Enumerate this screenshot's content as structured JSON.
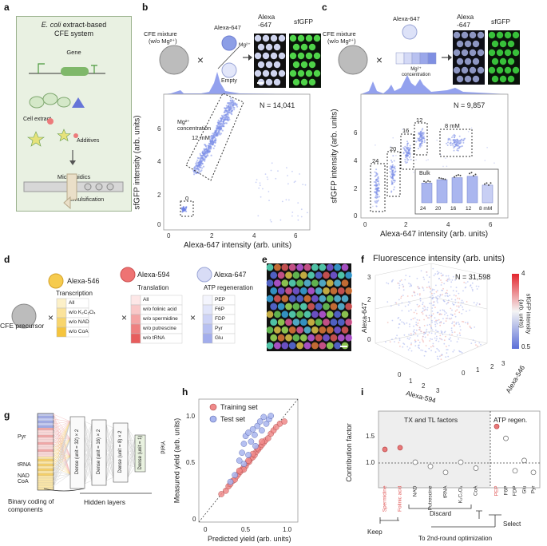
{
  "panel_labels": [
    "a",
    "b",
    "c",
    "d",
    "e",
    "f",
    "g",
    "h",
    "i"
  ],
  "panel_a": {
    "title_italic": "E. coli",
    "title_rest": " extract-based",
    "subtitle": "CFE system",
    "gene": "Gene",
    "gene_box": "sfGFP",
    "cell_extract": "Cell extract",
    "additives": "Additives",
    "microfluidics": "Microfluidics",
    "emulsification": "Emulsification"
  },
  "panel_b": {
    "mixture": "CFE mixture",
    "mixture_sub": "(w/o Mg²⁺)",
    "dye": "Alexa-647",
    "mg": "Mg²⁺",
    "empty": "Empty",
    "img1": "Alexa\n-647",
    "img2": "sfGFP",
    "n_text": "N = 14,041",
    "mg_label": "Mg²⁺\nconcentration",
    "label_12": "12 mM",
    "label_0": "0",
    "xlabel": "Alexa-647 intensity (arb. units)",
    "ylabel": "sfGFP intensity (arb. units)"
  },
  "panel_c": {
    "mixture": "CFE mixture",
    "mixture_sub": "(w/o Mg²⁺)",
    "dye": "Alexa-647",
    "mg": "Mg²⁺\nconcentration",
    "img1": "Alexa\n-647",
    "img2": "sfGFP",
    "n_text": "N = 9,857",
    "xlabel": "Alexa-647 intensity (arb. units)",
    "ylabel": "sfGFP intensity (arb. units)",
    "cluster_labels": [
      "24",
      "20",
      "16",
      "12",
      "8 mM"
    ],
    "bulk_title": "Bulk",
    "bulk_x": [
      "24",
      "20",
      "16",
      "12",
      "8 mM"
    ]
  },
  "panel_d": {
    "precursor": "CFE precursor",
    "g1_dye": "Alexa-546",
    "g1_title": "Transcription",
    "g1_rows": [
      "All",
      "w/o K₂C₂O₄",
      "w/o NAD",
      "w/o CoA"
    ],
    "g2_dye": "Alexa-594",
    "g2_title": "Translation",
    "g2_rows": [
      "All",
      "w/o folinic acid",
      "w/o spermidine",
      "w/o putrescine",
      "w/o tRNA"
    ],
    "g3_dye": "Alexa-647",
    "g3_title": "ATP regeneration",
    "g3_rows": [
      "PEP",
      "F6P",
      "FDP",
      "Pyr",
      "Glu"
    ],
    "times": "×"
  },
  "panel_f": {
    "title": "Fluorescence intensity (arb. units)",
    "n_text": "N = 31,598",
    "axis1": "Alexa-647",
    "axis2": "Alexa-594",
    "axis3": "Alexa-546",
    "cbar_title": "sfGFP intensity\n(arb. units)",
    "cbar_max": "4",
    "cbar_min": "0.5"
  },
  "panel_g": {
    "row_labels": [
      "Pyr",
      "tRNA",
      "NAD",
      "CoA"
    ],
    "layers": [
      "Dense (unit = 32) × 2",
      "Dense (unit = 16) × 2",
      "Dense (unit = 8) × 2",
      "Dense (unit = 1)"
    ],
    "output": "Yield",
    "binary": "Binary coding of\ncomponents",
    "hidden": "Hidden layers"
  },
  "chart_data": [
    {
      "type": "scatter",
      "title": "",
      "xlabel": "Predicted yield (arb. units)",
      "ylabel": "Measured yield (arb. units)",
      "xlim": [
        0,
        1.1
      ],
      "ylim": [
        0,
        1.1
      ],
      "xticks": [
        "0",
        "0.5",
        "1.0"
      ],
      "yticks": [
        "0",
        "0.5",
        "1.0"
      ],
      "legend": [
        "Training set",
        "Test set"
      ],
      "series": [
        {
          "name": "Training set",
          "color": "#f08a8a",
          "points": [
            [
              0.25,
              0.25
            ],
            [
              0.3,
              0.28
            ],
            [
              0.33,
              0.32
            ],
            [
              0.35,
              0.34
            ],
            [
              0.38,
              0.37
            ],
            [
              0.4,
              0.38
            ],
            [
              0.42,
              0.41
            ],
            [
              0.44,
              0.43
            ],
            [
              0.46,
              0.45
            ],
            [
              0.48,
              0.47
            ],
            [
              0.5,
              0.49
            ],
            [
              0.52,
              0.5
            ],
            [
              0.54,
              0.53
            ],
            [
              0.56,
              0.54
            ],
            [
              0.58,
              0.57
            ],
            [
              0.6,
              0.58
            ],
            [
              0.62,
              0.6
            ],
            [
              0.64,
              0.63
            ],
            [
              0.66,
              0.65
            ],
            [
              0.68,
              0.67
            ],
            [
              0.7,
              0.69
            ],
            [
              0.72,
              0.71
            ],
            [
              0.74,
              0.73
            ],
            [
              0.77,
              0.75
            ],
            [
              0.8,
              0.79
            ],
            [
              0.83,
              0.82
            ],
            [
              0.86,
              0.85
            ],
            [
              0.9,
              0.88
            ],
            [
              0.95,
              0.9
            ],
            [
              0.5,
              0.47
            ],
            [
              0.55,
              0.55
            ],
            [
              0.45,
              0.46
            ],
            [
              0.65,
              0.66
            ],
            [
              0.7,
              0.72
            ],
            [
              0.6,
              0.61
            ]
          ]
        },
        {
          "name": "Test set",
          "color": "#a9b6ef",
          "points": [
            [
              0.45,
              0.55
            ],
            [
              0.48,
              0.62
            ],
            [
              0.5,
              0.7
            ],
            [
              0.52,
              0.77
            ],
            [
              0.55,
              0.8
            ],
            [
              0.58,
              0.72
            ],
            [
              0.6,
              0.83
            ],
            [
              0.62,
              0.78
            ],
            [
              0.65,
              0.86
            ],
            [
              0.68,
              0.9
            ],
            [
              0.7,
              0.82
            ],
            [
              0.72,
              0.94
            ],
            [
              0.75,
              0.88
            ],
            [
              0.78,
              0.92
            ],
            [
              0.55,
              0.6
            ],
            [
              0.5,
              0.52
            ],
            [
              0.4,
              0.42
            ],
            [
              0.35,
              0.36
            ],
            [
              0.8,
              0.95
            ],
            [
              0.63,
              0.68
            ]
          ]
        }
      ]
    },
    {
      "type": "scatter",
      "title": "",
      "ylabel": "Contribution factor",
      "ylim": [
        0.7,
        1.6
      ],
      "yticks": [
        "1.5",
        "1.0"
      ],
      "group_labels": [
        "TX and TL factors",
        "ATP regen."
      ],
      "categories": [
        "Spermidine",
        "Folinic acid",
        "NAD",
        "Putrescine",
        "tRNA",
        "K₂C₂O₄",
        "CoA",
        "PEP",
        "F6P",
        "FDP",
        "Glu",
        "Pyr"
      ],
      "values": [
        1.15,
        1.17,
        1.0,
        0.95,
        0.88,
        1.0,
        0.93,
        1.42,
        1.28,
        0.9,
        1.02,
        0.88
      ],
      "highlight": [
        "Spermidine",
        "Folinic acid",
        "PEP"
      ],
      "keep": "Keep",
      "discard": "Discard",
      "select": "Select",
      "footer": "To 2nd-round optimization"
    }
  ],
  "panel_b_bars": {
    "type": "bar",
    "title": "Bulk",
    "categories": [
      "24",
      "20",
      "16",
      "12",
      "8 mM"
    ],
    "values": [
      1.45,
      1.7,
      1.85,
      1.95,
      1.3
    ]
  }
}
